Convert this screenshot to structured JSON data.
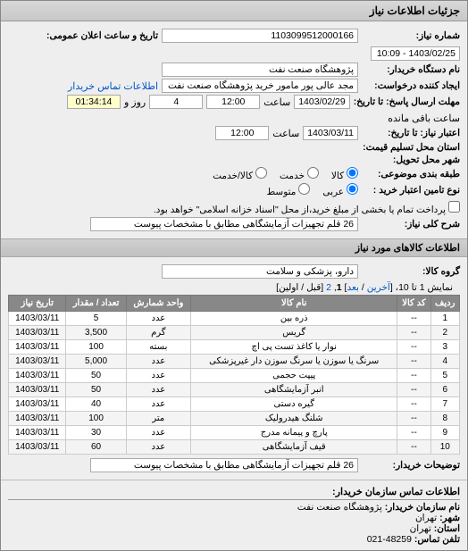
{
  "panel_title": "جزئیات اطلاعات نیاز",
  "fields": {
    "req_no_label": "شماره نیاز:",
    "req_no": "1103099512000166",
    "announce_label": "تاریخ و ساعت اعلان عمومی:",
    "announce_val": "1403/02/25 - 10:09",
    "buyer_label": "نام دستگاه خریدار:",
    "buyer_val": "پژوهشگاه صنعت نفت",
    "creator_label": "ایجاد کننده درخواست:",
    "creator_val": "مجد عالی پور مامور خرید پژوهشگاه صنعت نفت",
    "buyer_contact_label": "اطلاعات تماس خریدار",
    "deadline_send_label": "مهلت ارسال پاسخ: تا تاریخ:",
    "deadline_date": "1403/02/29",
    "hour_label": "ساعت",
    "deadline_hour": "12:00",
    "days_label": "روز و",
    "days_val": "4",
    "remain_label": "ساعت باقی مانده",
    "remain_val": "01:34:14",
    "valid_label": "اعتبار نیاز: تا تاریخ:",
    "valid_date": "1403/03/11",
    "valid_hour": "12:00",
    "place_q_label": "استان محل تسلیم قیمت:",
    "place_d_label": "شهر محل تحویل:",
    "class_label": "طبقه بندی موضوعی:",
    "opt_all": "کالا",
    "opt_mid": "خدمت",
    "opt_svc": "کالا/خدمت",
    "pay_label": "نوع تامین اعتبار خرید :",
    "opt_cash": "عربی",
    "opt_credit": "متوسط",
    "pay_note": "پرداخت تمام یا بخشی از مبلغ خرید،از محل \"اسناد خزانه اسلامی\" خواهد بود.",
    "desc_label": "شرح کلی نیاز:",
    "desc_val": "26 قلم تجهیزات آزمایشگاهی مطابق با مشخصات پیوست"
  },
  "section_goods": "اطلاعات کالاهای مورد نیاز",
  "group_label": "گروه کالا:",
  "group_val": "دارو، پزشکی و سلامت",
  "pager": {
    "text1": "نمایش 1 تا 10، [",
    "last": "آخرین",
    "sep1": " / ",
    "next": "بعد",
    "text2": "] ",
    "p1": "1",
    "comma": ", ",
    "p2": "2",
    "text3": " [قبل / اولین]"
  },
  "columns": [
    "ردیف",
    "کد کالا",
    "نام کالا",
    "واحد شمارش",
    "تعداد / مقدار",
    "تاریخ نیاز"
  ],
  "rows": [
    [
      "1",
      "--",
      "ذره بین",
      "عدد",
      "5",
      "1403/03/11"
    ],
    [
      "2",
      "--",
      "گریس",
      "گرم",
      "3,500",
      "1403/03/11"
    ],
    [
      "3",
      "--",
      "نوار یا کاغذ تست پی اچ",
      "بسته",
      "100",
      "1403/03/11"
    ],
    [
      "4",
      "--",
      "سرنگ یا سوزن یا سرنگ سوزن دار غیرپزشکی",
      "عدد",
      "5,000",
      "1403/03/11"
    ],
    [
      "5",
      "--",
      "پیپت حجمی",
      "عدد",
      "50",
      "1403/03/11"
    ],
    [
      "6",
      "--",
      "انبر آزمایشگاهی",
      "عدد",
      "50",
      "1403/03/11"
    ],
    [
      "7",
      "--",
      "گیره دستی",
      "عدد",
      "40",
      "1403/03/11"
    ],
    [
      "8",
      "--",
      "شلنگ هیدرولیک",
      "متر",
      "100",
      "1403/03/11"
    ],
    [
      "9",
      "--",
      "پارچ و پیمانه مدرج",
      "عدد",
      "30",
      "1403/03/11"
    ],
    [
      "10",
      "--",
      "قیف آزمایشگاهی",
      "عدد",
      "60",
      "1403/03/11"
    ]
  ],
  "buyer_desc_label": "توضیحات خریدار:",
  "buyer_desc_val": "26 قلم تجهیزات آزمایشگاهی مطابق با مشخصات پیوست",
  "footer": {
    "title": "اطلاعات تماس سازمان خریدار:",
    "org_label": "نام سازمان خریدار:",
    "org_val": "پژوهشگاه صنعت نفت",
    "city_label": "شهر:",
    "city_val": "تهران",
    "prov_label": "استان:",
    "prov_val": "تهران",
    "tel_label": "تلفن تماس:",
    "tel_val": "48259-021"
  }
}
